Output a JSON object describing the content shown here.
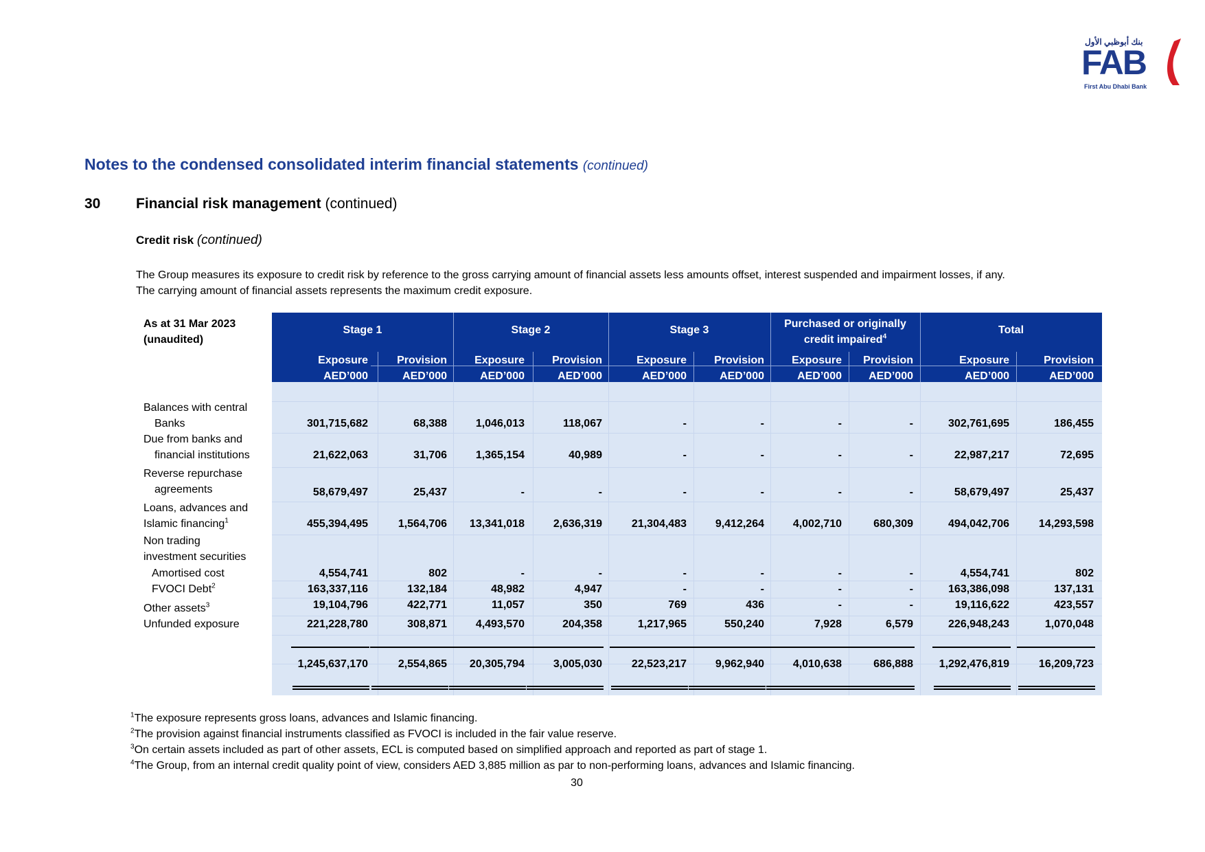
{
  "logo": {
    "arabic": "بنك أبوظبي الأول",
    "mark": "FAB",
    "subtitle": "First Abu Dhabi Bank",
    "accent": "#d71e28",
    "brand": "#1f3b8c"
  },
  "header": {
    "title": "Notes to the condensed consolidated interim financial statements",
    "title_suffix": "(continued)"
  },
  "section": {
    "number": "30",
    "title": "Financial risk management",
    "title_suffix": "(continued)",
    "subtitle": "Credit risk",
    "subtitle_suffix": "(continued)",
    "paragraph_1": "The Group measures its exposure to credit risk by reference to the gross carrying amount of financial assets less amounts offset, interest suspended and impairment losses, if any.",
    "paragraph_2": "The carrying amount of financial assets represents the maximum credit exposure."
  },
  "table": {
    "as_at_line1": "As at 31 Mar 2023",
    "as_at_line2": "(unaudited)",
    "groups": [
      "Stage 1",
      "Stage 2",
      "Stage 3",
      "Purchased or originally",
      "Total"
    ],
    "group4_line2": "credit impaired",
    "group4_sup": "4",
    "col_line1": [
      "Exposure",
      "Provision",
      "Exposure",
      "Provision",
      "Exposure",
      "Provision",
      "Exposure",
      "Provision",
      "Exposure",
      "Provision"
    ],
    "col_line2": [
      "AED’000",
      "AED’000",
      "AED’000",
      "AED’000",
      "AED’000",
      "AED’000",
      "AED’000",
      "AED’000",
      "AED’000",
      "AED’000"
    ],
    "rows": [
      {
        "label1": "Balances with central",
        "label2": "Banks",
        "values": [
          "301,715,682",
          "68,388",
          "1,046,013",
          "118,067",
          "-",
          "-",
          "-",
          "-",
          "302,761,695",
          "186,455"
        ]
      },
      {
        "label1": "Due from banks and",
        "label2": "financial institutions",
        "values": [
          "21,622,063",
          "31,706",
          "1,365,154",
          "40,989",
          "-",
          "-",
          "-",
          "-",
          "22,987,217",
          "72,695"
        ]
      },
      {
        "label1": "Reverse repurchase",
        "label2": "agreements",
        "values": [
          "58,679,497",
          "25,437",
          "-",
          "-",
          "-",
          "-",
          "-",
          "-",
          "58,679,497",
          "25,437"
        ]
      },
      {
        "label1": "Loans, advances and",
        "label2": "Islamic financing",
        "sup": "1",
        "values": [
          "455,394,495",
          "1,564,706",
          "13,341,018",
          "2,636,319",
          "21,304,483",
          "9,412,264",
          "4,002,710",
          "680,309",
          "494,042,706",
          "14,293,598"
        ]
      },
      {
        "label1": "Non trading",
        "label2": "investment securities"
      },
      {
        "label1": "Amortised cost",
        "values": [
          "4,554,741",
          "802",
          "-",
          "-",
          "-",
          "-",
          "-",
          "-",
          "4,554,741",
          "802"
        ]
      },
      {
        "label1": "FVOCI Debt",
        "sup": "2",
        "values": [
          "163,337,116",
          "132,184",
          "48,982",
          "4,947",
          "-",
          "-",
          "-",
          "-",
          "163,386,098",
          "137,131"
        ]
      },
      {
        "label1": "Other assets",
        "sup": "3",
        "values": [
          "19,104,796",
          "422,771",
          "11,057",
          "350",
          "769",
          "436",
          "-",
          "-",
          "19,116,622",
          "423,557"
        ]
      },
      {
        "label1": "Unfunded exposure",
        "values": [
          "221,228,780",
          "308,871",
          "4,493,570",
          "204,358",
          "1,217,965",
          "550,240",
          "7,928",
          "6,579",
          "226,948,243",
          "1,070,048"
        ]
      }
    ],
    "totals": [
      "1,245,637,170",
      "2,554,865",
      "20,305,794",
      "3,005,030",
      "22,523,217",
      "9,962,940",
      "4,010,638",
      "686,888",
      "1,292,476,819",
      "16,209,723"
    ],
    "header_color": "#0a3495",
    "body_color": "#dbe6f5"
  },
  "footnotes": [
    {
      "sup": "1",
      "text": "The exposure represents gross loans, advances and Islamic financing."
    },
    {
      "sup": "2",
      "text": "The provision against financial instruments classified as FVOCI is included in the fair value reserve."
    },
    {
      "sup": "3",
      "text": "On certain assets included as part of other assets, ECL is computed based on simplified approach and reported as part of stage 1."
    },
    {
      "sup": "4",
      "text": "The Group, from an internal credit quality point of view, considers AED 3,885 million as par to non-performing loans, advances and Islamic financing."
    }
  ],
  "page_number": "30"
}
